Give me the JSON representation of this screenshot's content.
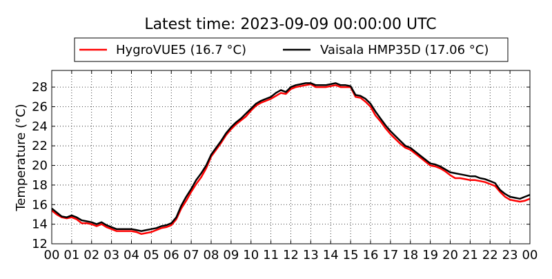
{
  "chart_data": {
    "type": "line",
    "title": "Latest time: 2023-09-09 00:00:00 UTC",
    "xlabel": "",
    "ylabel": "Temperature (°C)",
    "xlim": [
      0,
      24
    ],
    "ylim": [
      12,
      29.7
    ],
    "grid": true,
    "legend": "top-center",
    "xticks": [
      0,
      1,
      2,
      3,
      4,
      5,
      6,
      7,
      8,
      9,
      10,
      11,
      12,
      13,
      14,
      15,
      16,
      17,
      18,
      19,
      20,
      21,
      22,
      23,
      24
    ],
    "xtick_labels": [
      "00",
      "01",
      "02",
      "03",
      "04",
      "05",
      "06",
      "07",
      "08",
      "09",
      "10",
      "11",
      "12",
      "13",
      "14",
      "15",
      "16",
      "17",
      "18",
      "19",
      "20",
      "21",
      "22",
      "23",
      "00"
    ],
    "yticks": [
      12,
      14,
      16,
      18,
      20,
      22,
      24,
      26,
      28
    ],
    "ytick_labels": [
      "12",
      "14",
      "16",
      "18",
      "20",
      "22",
      "24",
      "26",
      "28"
    ],
    "series": [
      {
        "name": "HygroVUE5 (16.7 °C)",
        "color": "#ff0000",
        "x": [
          0,
          0.25,
          0.5,
          0.75,
          1,
          1.25,
          1.5,
          1.75,
          2,
          2.25,
          2.5,
          2.75,
          3,
          3.25,
          3.5,
          3.75,
          4,
          4.25,
          4.5,
          4.75,
          5,
          5.25,
          5.5,
          5.75,
          6,
          6.25,
          6.5,
          6.75,
          7,
          7.25,
          7.5,
          7.75,
          8,
          8.25,
          8.5,
          8.75,
          9,
          9.25,
          9.5,
          9.75,
          10,
          10.25,
          10.5,
          10.75,
          11,
          11.25,
          11.5,
          11.75,
          12,
          12.25,
          12.5,
          12.75,
          13,
          13.25,
          13.5,
          13.75,
          14,
          14.25,
          14.5,
          14.75,
          15,
          15.25,
          15.5,
          15.75,
          16,
          16.25,
          16.5,
          16.75,
          17,
          17.25,
          17.5,
          17.75,
          18,
          18.25,
          18.5,
          18.75,
          19,
          19.25,
          19.5,
          19.75,
          20,
          20.25,
          20.5,
          20.75,
          21,
          21.25,
          21.5,
          21.75,
          22,
          22.25,
          22.5,
          22.75,
          23,
          23.25,
          23.5,
          23.75,
          24
        ],
        "values": [
          15.4,
          15.0,
          14.7,
          14.6,
          14.7,
          14.5,
          14.1,
          14.1,
          14.0,
          13.8,
          14.0,
          13.7,
          13.5,
          13.3,
          13.3,
          13.3,
          13.3,
          13.2,
          13.0,
          13.1,
          13.2,
          13.4,
          13.6,
          13.7,
          13.9,
          14.5,
          15.6,
          16.4,
          17.3,
          18.1,
          18.8,
          19.7,
          20.9,
          21.6,
          22.3,
          23.1,
          23.7,
          24.2,
          24.6,
          25.0,
          25.6,
          26.1,
          26.4,
          26.6,
          26.8,
          27.1,
          27.4,
          27.3,
          27.8,
          28.0,
          28.1,
          28.2,
          28.3,
          28.0,
          28.0,
          28.0,
          28.1,
          28.2,
          28.0,
          28.0,
          28.0,
          27.0,
          26.9,
          26.5,
          26.0,
          25.1,
          24.5,
          23.8,
          23.2,
          22.7,
          22.2,
          21.8,
          21.6,
          21.2,
          20.8,
          20.4,
          20.0,
          19.9,
          19.7,
          19.4,
          19.0,
          18.7,
          18.7,
          18.6,
          18.5,
          18.5,
          18.4,
          18.3,
          18.1,
          17.9,
          17.3,
          16.8,
          16.5,
          16.4,
          16.3,
          16.4,
          16.6
        ]
      },
      {
        "name": "Vaisala HMP35D (17.06 °C)",
        "color": "#000000",
        "x": [
          0,
          0.25,
          0.5,
          0.75,
          1,
          1.25,
          1.5,
          1.75,
          2,
          2.25,
          2.5,
          2.75,
          3,
          3.25,
          3.5,
          3.75,
          4,
          4.25,
          4.5,
          4.75,
          5,
          5.25,
          5.5,
          5.75,
          6,
          6.25,
          6.5,
          6.75,
          7,
          7.25,
          7.5,
          7.75,
          8,
          8.25,
          8.5,
          8.75,
          9,
          9.25,
          9.5,
          9.75,
          10,
          10.25,
          10.5,
          10.75,
          11,
          11.25,
          11.5,
          11.75,
          12,
          12.25,
          12.5,
          12.75,
          13,
          13.25,
          13.5,
          13.75,
          14,
          14.25,
          14.5,
          14.75,
          15,
          15.25,
          15.5,
          15.75,
          16,
          16.25,
          16.5,
          16.75,
          17,
          17.25,
          17.5,
          17.75,
          18,
          18.25,
          18.5,
          18.75,
          19,
          19.25,
          19.5,
          19.75,
          20,
          20.25,
          20.5,
          20.75,
          21,
          21.25,
          21.5,
          21.75,
          22,
          22.25,
          22.5,
          22.75,
          23,
          23.25,
          23.5,
          23.75,
          24
        ],
        "values": [
          15.6,
          15.2,
          14.8,
          14.7,
          14.9,
          14.7,
          14.4,
          14.3,
          14.2,
          14.0,
          14.2,
          13.9,
          13.7,
          13.5,
          13.5,
          13.5,
          13.5,
          13.4,
          13.3,
          13.4,
          13.5,
          13.6,
          13.8,
          13.9,
          14.1,
          14.7,
          15.9,
          16.8,
          17.6,
          18.5,
          19.2,
          20.0,
          21.1,
          21.8,
          22.5,
          23.3,
          23.9,
          24.4,
          24.8,
          25.3,
          25.8,
          26.3,
          26.6,
          26.8,
          27.0,
          27.4,
          27.7,
          27.5,
          28.0,
          28.2,
          28.3,
          28.4,
          28.4,
          28.2,
          28.2,
          28.2,
          28.3,
          28.4,
          28.2,
          28.2,
          28.1,
          27.2,
          27.1,
          26.8,
          26.3,
          25.5,
          24.8,
          24.1,
          23.5,
          23.0,
          22.5,
          22.0,
          21.8,
          21.4,
          21.0,
          20.6,
          20.2,
          20.1,
          19.9,
          19.6,
          19.3,
          19.2,
          19.1,
          19.0,
          18.9,
          18.9,
          18.7,
          18.6,
          18.4,
          18.2,
          17.5,
          17.1,
          16.8,
          16.7,
          16.6,
          16.8,
          17.0
        ]
      }
    ]
  }
}
